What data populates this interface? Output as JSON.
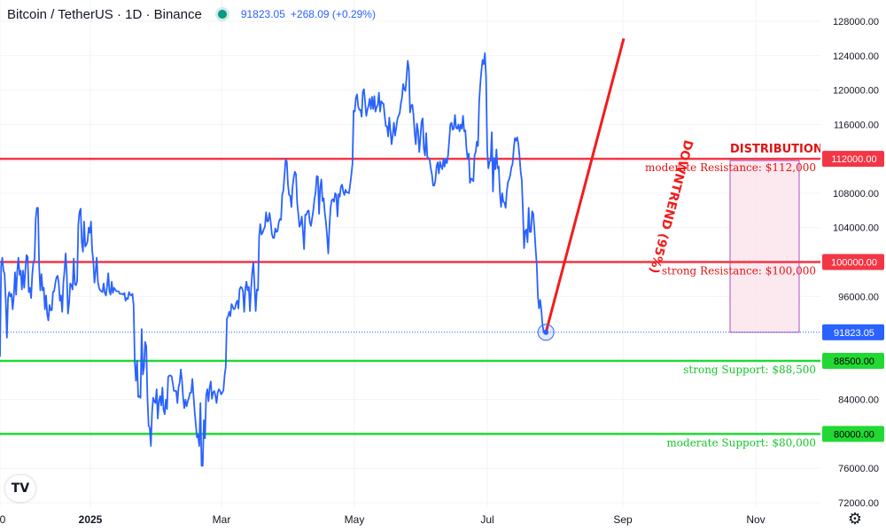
{
  "header": {
    "symbol": "Bitcoin / TetherUS · 1D · Binance",
    "price": "91823.05",
    "change": "+268.09 (+0.29%)",
    "status_color": "#089981"
  },
  "chart_data": {
    "type": "line",
    "series": [
      {
        "values": [
          89000,
          99500,
          100500,
          99000,
          98600,
          95500,
          91200,
          95800,
          96500,
          96000,
          96300,
          94500,
          96000,
          98800,
          96200,
          99000,
          100500,
          98500,
          99000,
          96800,
          99000,
          97000,
          99000,
          100800,
          100600,
          96500,
          97000,
          95800,
          98500,
          100000,
          100300,
          105000,
          106300,
          106300,
          99500,
          96700,
          98600,
          96700,
          97000,
          94500,
          96100,
          93900,
          93200,
          95000,
          94400,
          94400,
          96500,
          96600,
          97500,
          98200,
          98400,
          97600,
          95500,
          96100,
          94200,
          97500,
          99000,
          101000,
          98500,
          94000,
          95200,
          97500,
          97300,
          96800,
          100400,
          97400,
          97300,
          97800,
          104400,
          105800,
          106200,
          102300,
          101200,
          104700,
          101800,
          102000,
          102400,
          104000,
          103400,
          104700,
          101400,
          100100,
          97600,
          98900,
          100500,
          97700,
          97000,
          96700,
          96600,
          96500,
          97500,
          96400,
          96100,
          97200,
          98700,
          96600,
          96200,
          97700,
          96400,
          97000,
          96800,
          96600,
          96600,
          96600,
          96300,
          96300,
          96300,
          96200,
          96400,
          95500,
          95800,
          95700,
          96500,
          96200,
          96100,
          96300,
          95000,
          88500,
          86200,
          88500,
          84300,
          84400,
          84200,
          92200,
          86900,
          87700,
          90700,
          90200,
          84300,
          81000,
          80700,
          78600,
          82500,
          84200,
          83800,
          83600,
          85200,
          81800,
          83800,
          84400,
          83300,
          85400,
          82800,
          82300,
          84000,
          82900,
          86600,
          86800,
          86800,
          86700,
          85900,
          85000,
          85000,
          85000,
          83600,
          85400,
          86000,
          87500,
          86200,
          84200,
          83000,
          84000,
          83200,
          83800,
          84200,
          84800,
          84800,
          86400,
          84500,
          82600,
          81100,
          79600,
          79900,
          78600,
          83600,
          76300,
          76300,
          81600,
          79500,
          84500,
          85200,
          83800,
          85400,
          86100,
          84100,
          84800,
          85000,
          84500,
          83600,
          84800,
          85200,
          85000,
          84600,
          84800,
          85100,
          86800,
          87800,
          93400,
          93700,
          94200,
          93700,
          95100,
          94800,
          94500,
          94600,
          95200,
          95500,
          94600,
          96800,
          97100,
          97000,
          96600,
          94200,
          96900,
          97700,
          96700,
          97100,
          94300,
          96900,
          98800,
          100000,
          97200,
          94300,
          96800,
          96700,
          103000,
          104400,
          103200,
          103400,
          103800,
          104100,
          105800,
          104700,
          104800,
          105700,
          104700,
          103300,
          102800,
          102800,
          103900,
          103500,
          103600,
          104600,
          105000,
          104900,
          107800,
          108300,
          110100,
          111900,
          111700,
          109000,
          107800,
          107700,
          106400,
          108700,
          109800,
          110500,
          110200,
          106900,
          105600,
          104100,
          104400,
          105300,
          103600,
          101500,
          105500,
          105500,
          105900,
          106000,
          104600,
          104200,
          105100,
          106000,
          107300,
          108100,
          110000,
          109900,
          105600,
          108700,
          109600,
          107100,
          107400,
          105700,
          104600,
          103000,
          101000,
          104100,
          106300,
          107200,
          107300,
          107000,
          108000,
          107800,
          105300,
          107900,
          107600,
          108800,
          109000,
          108200,
          107800,
          108400,
          108100,
          108100,
          108000,
          109000,
          110100,
          111400,
          117600,
          117500,
          119100,
          119500,
          118100,
          117700,
          117700,
          116900,
          119800,
          120100,
          118600,
          117000,
          117700,
          118200,
          119000,
          117800,
          119200,
          117800,
          119300,
          117500,
          118000,
          118300,
          119700,
          117500,
          118700,
          118500,
          118400,
          117000,
          115800,
          115800,
          114600,
          116800,
          115200,
          113700,
          114800,
          116200,
          114700,
          115600,
          116600,
          117000,
          117300,
          118400,
          119100,
          120700,
          120100,
          119900,
          121600,
          123400,
          122400,
          117400,
          118200,
          118300,
          117100,
          115000,
          113700,
          116100,
          115200,
          112800,
          114500,
          116300,
          116700,
          113200,
          112400,
          115000,
          112200,
          112100,
          111900,
          110900,
          110200,
          108900,
          108900,
          109500,
          111100,
          111600,
          110300,
          111700,
          111100,
          110800,
          112000,
          111100,
          112000,
          111500,
          112400,
          114100,
          116000,
          116200,
          115400,
          115500,
          117100,
          115600,
          115500,
          116000,
          115200,
          116000,
          115500,
          117000,
          115200,
          115300,
          113200,
          112000,
          112600,
          109200,
          109700,
          109600,
          109400,
          112400,
          112800,
          114000,
          113500,
          118600,
          120700,
          122300,
          123500,
          123000,
          124300,
          121500,
          113100,
          110900,
          111700,
          111800,
          115100,
          108200,
          112100,
          110800,
          113100,
          110900,
          111100,
          108100,
          106400,
          108000,
          107000,
          106900,
          106300,
          108200,
          109300,
          109600,
          110100,
          111000,
          111400,
          113100,
          114400,
          114100,
          114500,
          113800,
          112400,
          110600,
          109500,
          106000,
          101600,
          103600,
          103800,
          102300,
          106300,
          103500,
          103500,
          105900,
          105600,
          103800,
          101600,
          99700,
          96000,
          94600,
          95600,
          94400,
          92700,
          91900,
          91800,
          91823.05
        ]
      }
    ],
    "x_ticks": [
      "0",
      "2025",
      "Mar",
      "May",
      "Jul",
      "Sep",
      "Nov"
    ],
    "y_ticks": [
      "128000.00",
      "124000.00",
      "120000.00",
      "116000.00",
      "108000.00",
      "104000.00",
      "96000.00",
      "84000.00",
      "76000.00",
      "72000.00"
    ],
    "ylim": [
      72000,
      128000
    ],
    "grid": true,
    "levels": [
      {
        "price_label": "112000.00",
        "value": 112000,
        "color": "#f23645",
        "annotation": "moderate Resistance: $112,000"
      },
      {
        "price_label": "100000.00",
        "value": 100000,
        "color": "#f23645",
        "annotation": "strong Resistance: $100,000"
      },
      {
        "price_label": "88500.00",
        "value": 88500,
        "color": "#22d933",
        "annotation": "strong Support: $88,500"
      },
      {
        "price_label": "80000.00",
        "value": 80000,
        "color": "#22d933",
        "annotation": "moderate Support: $80,000"
      }
    ],
    "last_price_label": "91823.05",
    "last_price_value": 91823.05,
    "zone": {
      "label": "DISTRIBUTION ZO",
      "top": 111800,
      "bottom": 91823.05
    },
    "trendline": {
      "label": "DOWNTREND (95%)",
      "start_value": 126000,
      "end_value": 91823.05
    },
    "colors": {
      "series": "#2962ff",
      "resistance": "#f23645",
      "support": "#22d933",
      "zone_fill": "#fce4ec",
      "zone_border": "#9c27b0"
    }
  },
  "footer": {
    "logo": "TV",
    "settings_icon": "gear-icon"
  }
}
